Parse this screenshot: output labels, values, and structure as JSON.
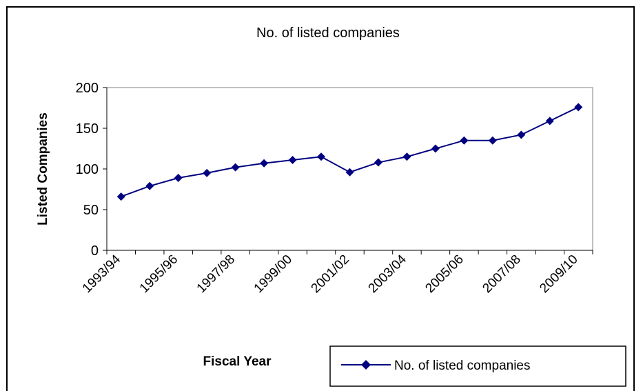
{
  "chart_data": {
    "type": "line",
    "title": "No. of listed companies",
    "xlabel": "Fiscal Year",
    "ylabel": "Listed Companies",
    "ylim": [
      0,
      200
    ],
    "y_ticks": [
      0,
      50,
      100,
      150,
      200
    ],
    "grid": false,
    "legend_placement": "bottom-right",
    "categories": [
      "1993/94",
      "1994/95",
      "1995/96",
      "1996/97",
      "1997/98",
      "1998/99",
      "1999/00",
      "2000/01",
      "2001/02",
      "2002/03",
      "2003/04",
      "2004/05",
      "2005/06",
      "2006/07",
      "2007/08",
      "2008/09",
      "2009/10"
    ],
    "tick_labels": [
      "1993/94",
      "1995/96",
      "1997/98",
      "1999/00",
      "2001/02",
      "2003/04",
      "2005/06",
      "2007/08",
      "2009/10"
    ],
    "series": [
      {
        "name": "No. of listed companies",
        "color": "#000080",
        "values": [
          66,
          79,
          89,
          95,
          102,
          107,
          111,
          115,
          96,
          108,
          115,
          125,
          135,
          135,
          142,
          159,
          176
        ]
      }
    ]
  }
}
